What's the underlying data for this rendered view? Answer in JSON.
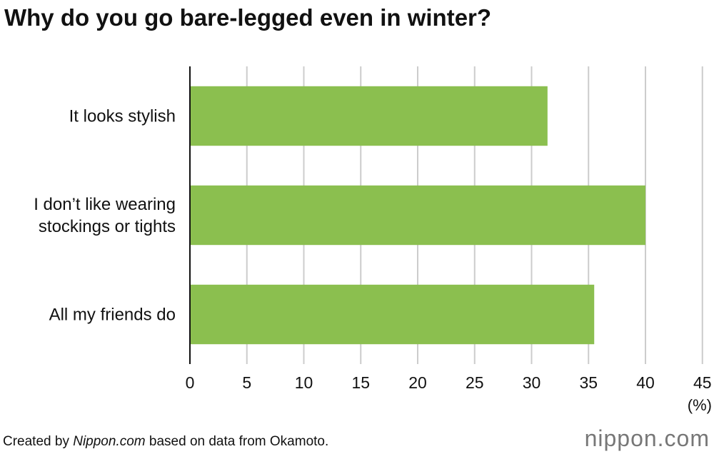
{
  "chart_data": {
    "type": "bar",
    "orientation": "horizontal",
    "title": "Why do you go bare-legged even in winter?",
    "categories": [
      "It looks stylish",
      "I don’t like wearing\nstockings or tights",
      "All my friends do"
    ],
    "values": [
      31.4,
      40,
      35.5
    ],
    "color": "#8bbf4f",
    "xlim": [
      0,
      45
    ],
    "xticks": [
      0,
      5,
      10,
      15,
      20,
      25,
      30,
      35,
      40,
      45
    ],
    "x_unit": "(%)",
    "grid": true,
    "source": [
      "Created by ",
      "Nippon.com",
      " based on data from Okamoto."
    ],
    "logo": "nippon.com"
  }
}
